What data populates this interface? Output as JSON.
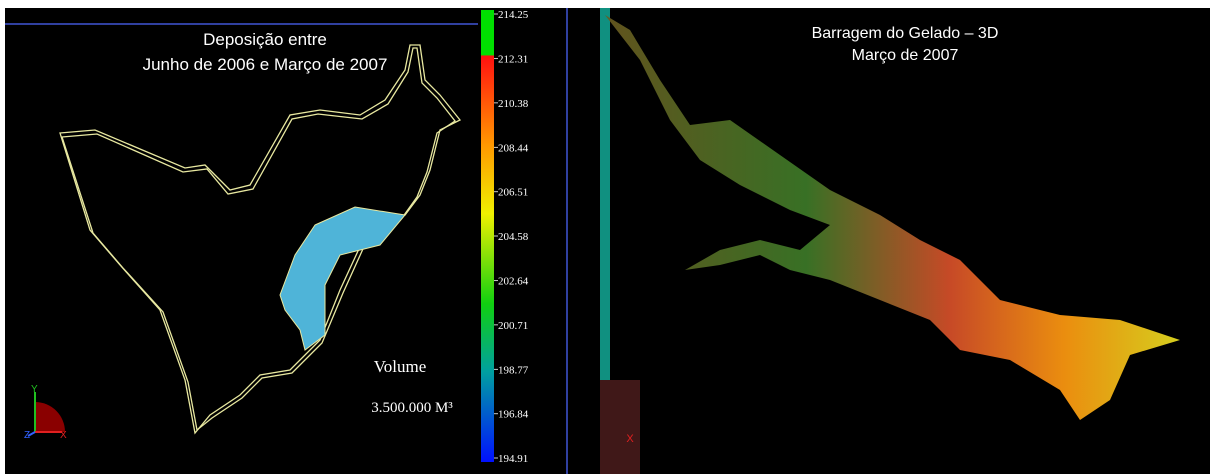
{
  "left_panel": {
    "title_lines": [
      "Deposição entre",
      "Junho de 2006 e Março de 2007"
    ],
    "volume_label": "Volume",
    "volume_value": "3.500.000 M³",
    "axes": {
      "y": "Y",
      "z": "Z",
      "x": "X"
    }
  },
  "color_scale": {
    "ticks": [
      214.25,
      212.31,
      210.38,
      208.44,
      206.51,
      204.58,
      202.64,
      200.71,
      198.77,
      196.84,
      194.91
    ]
  },
  "right_panel": {
    "title_lines": [
      "Barragem do Gelado – 3D",
      "Março de 2007"
    ],
    "axis_x": "X"
  }
}
